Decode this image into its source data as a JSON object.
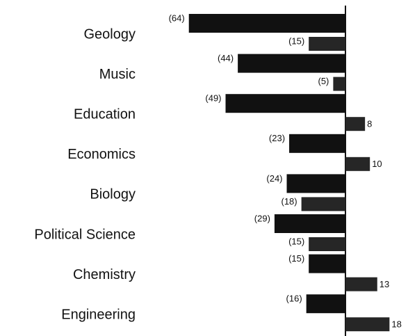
{
  "chart_data": {
    "type": "bar",
    "categories": [
      "Geology",
      "Music",
      "Education",
      "Economics",
      "Biology",
      "Political Science",
      "Chemistry",
      "Engineering"
    ],
    "series": [
      {
        "color": "#111111",
        "values": [
          -64,
          -44,
          -49,
          -23,
          -24,
          -29,
          -15,
          -16
        ],
        "value_labels": [
          "(64)",
          "(44)",
          "(49)",
          "(23)",
          "(24)",
          "(29)",
          "(15)",
          "(16)"
        ]
      },
      {
        "color": "#262626",
        "values": [
          -15,
          -5,
          8,
          10,
          -18,
          -15,
          13,
          18
        ],
        "value_labels": [
          "(15)",
          "(5)",
          "8",
          "10",
          "(18)",
          "(15)",
          "13",
          "18"
        ]
      }
    ]
  }
}
